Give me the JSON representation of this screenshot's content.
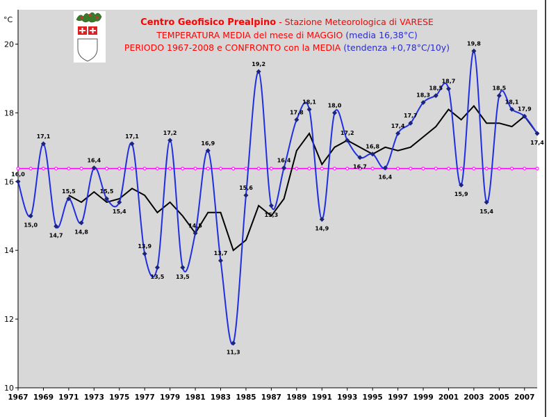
{
  "header": {
    "line1_bold": "Centro Geofisico Prealpino",
    "line1_rest": " - Stazione Meteorologica di VARESE",
    "line2_red": "TEMPERATURA MEDIA del mese di MAGGIO ",
    "line2_blue": "(media 16,38°C)",
    "line3_red": "PERIODO 1967-2008 e CONFRONTO con la MEDIA ",
    "line3_blue": "(tendenza +0,78°C/10y)"
  },
  "logo": {
    "name": "varese-coat-of-arms"
  },
  "colors": {
    "plot_bg": "#d8d8d8",
    "series_line": "#1f2ee0",
    "moving_avg": "#000000",
    "mean_line": "#ff00ff",
    "title_red": "#ff0000",
    "title_blue": "#2a2ad6"
  },
  "chart_data": {
    "type": "line",
    "ylabel": "°C",
    "ylim": [
      10,
      21
    ],
    "yticks": [
      10,
      12,
      14,
      16,
      18,
      20
    ],
    "xlim": [
      1967,
      2008
    ],
    "xticks": [
      1967,
      1969,
      1971,
      1973,
      1975,
      1977,
      1979,
      1981,
      1983,
      1985,
      1987,
      1989,
      1991,
      1993,
      1995,
      1997,
      1999,
      2001,
      2003,
      2005,
      2007
    ],
    "grid": false,
    "mean": 16.38,
    "series": [
      {
        "x": [
          1967,
          1968,
          1969,
          1970,
          1971,
          1972,
          1973,
          1974,
          1975,
          1976,
          1977,
          1978,
          1979,
          1980,
          1981,
          1982,
          1983,
          1984,
          1985,
          1986,
          1987,
          1988,
          1989,
          1990,
          1991,
          1992,
          1993,
          1994,
          1995,
          1996,
          1997,
          1998,
          1999,
          2000,
          2001,
          2002,
          2003,
          2004,
          2005,
          2006,
          2007,
          2008
        ],
        "values": [
          16.0,
          15.0,
          17.1,
          14.7,
          15.5,
          14.8,
          16.4,
          15.5,
          15.4,
          17.1,
          13.9,
          13.5,
          17.2,
          13.5,
          14.5,
          16.9,
          13.7,
          11.3,
          15.6,
          19.2,
          15.3,
          16.4,
          17.8,
          18.1,
          14.9,
          18.0,
          17.2,
          16.7,
          16.8,
          16.4,
          17.4,
          17.7,
          18.3,
          18.5,
          18.7,
          15.9,
          19.8,
          15.4,
          18.5,
          18.1,
          17.9,
          17.4
        ]
      },
      {
        "x": [
          1971,
          1972,
          1973,
          1974,
          1975,
          1976,
          1977,
          1978,
          1979,
          1980,
          1981,
          1982,
          1983,
          1984,
          1985,
          1986,
          1987,
          1988,
          1989,
          1990,
          1991,
          1992,
          1993,
          1994,
          1995,
          1996,
          1997,
          1998,
          1999,
          2000,
          2001,
          2002,
          2003,
          2004,
          2005,
          2006,
          2007,
          2008
        ],
        "values": [
          15.6,
          15.4,
          15.7,
          15.4,
          15.5,
          15.8,
          15.6,
          15.1,
          15.4,
          15.0,
          14.5,
          15.1,
          15.1,
          14.0,
          14.3,
          15.3,
          15.0,
          15.5,
          16.9,
          17.4,
          16.5,
          17.0,
          17.2,
          17.0,
          16.8,
          17.0,
          16.9,
          17.0,
          17.3,
          17.6,
          18.1,
          17.8,
          18.2,
          17.7,
          17.7,
          17.6,
          17.9,
          17.4
        ]
      }
    ],
    "data_labels": [
      {
        "year": 1967,
        "text": "16,0"
      },
      {
        "year": 1968,
        "text": "15,0"
      },
      {
        "year": 1969,
        "text": "17,1"
      },
      {
        "year": 1970,
        "text": "14,7"
      },
      {
        "year": 1971,
        "text": "15,5"
      },
      {
        "year": 1972,
        "text": "14,8"
      },
      {
        "year": 1973,
        "text": "16,4"
      },
      {
        "year": 1974,
        "text": "15,5"
      },
      {
        "year": 1975,
        "text": "15,4"
      },
      {
        "year": 1976,
        "text": "17,1"
      },
      {
        "year": 1977,
        "text": "13,9"
      },
      {
        "year": 1978,
        "text": "13,5"
      },
      {
        "year": 1979,
        "text": "17,2"
      },
      {
        "year": 1980,
        "text": "13,5"
      },
      {
        "year": 1981,
        "text": "14,5"
      },
      {
        "year": 1982,
        "text": "16,9"
      },
      {
        "year": 1983,
        "text": "13,7"
      },
      {
        "year": 1984,
        "text": "11,3"
      },
      {
        "year": 1985,
        "text": "15,6"
      },
      {
        "year": 1986,
        "text": "19,2"
      },
      {
        "year": 1987,
        "text": "15,3"
      },
      {
        "year": 1988,
        "text": "16,4"
      },
      {
        "year": 1989,
        "text": "17,8"
      },
      {
        "year": 1990,
        "text": "18,1"
      },
      {
        "year": 1991,
        "text": "14,9"
      },
      {
        "year": 1992,
        "text": "18,0"
      },
      {
        "year": 1993,
        "text": "17,2"
      },
      {
        "year": 1994,
        "text": "16,7"
      },
      {
        "year": 1995,
        "text": "16,8"
      },
      {
        "year": 1996,
        "text": "16,4"
      },
      {
        "year": 1997,
        "text": "17,4"
      },
      {
        "year": 1998,
        "text": "17,7"
      },
      {
        "year": 1999,
        "text": "18,3"
      },
      {
        "year": 2000,
        "text": "18,5"
      },
      {
        "year": 2001,
        "text": "18,7"
      },
      {
        "year": 2002,
        "text": "15,9"
      },
      {
        "year": 2003,
        "text": "19,8"
      },
      {
        "year": 2004,
        "text": "15,4"
      },
      {
        "year": 2005,
        "text": "18,5"
      },
      {
        "year": 2006,
        "text": "18,1"
      },
      {
        "year": 2007,
        "text": "17,9"
      },
      {
        "year": 2008,
        "text": "17,4"
      }
    ]
  }
}
